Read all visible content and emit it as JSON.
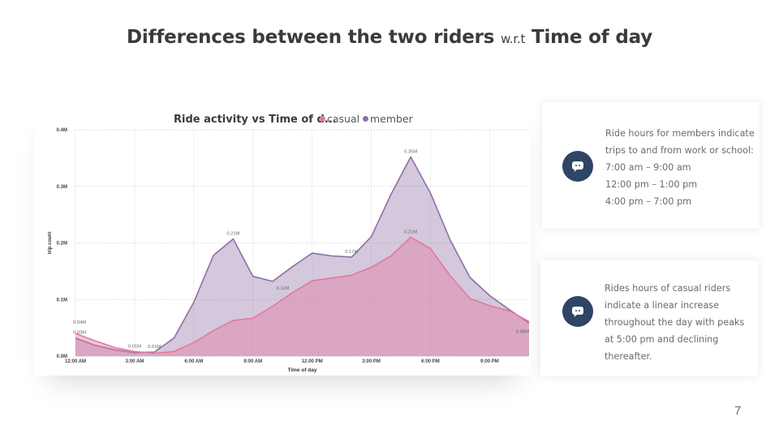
{
  "slide": {
    "title": "Differences between the two riders",
    "title_small": "w.r.t",
    "title_tail": "Time of day",
    "page_number": "7"
  },
  "chart_data": {
    "type": "area",
    "title": "Ride activity vs Time of d...",
    "xlabel": "Time of day",
    "ylabel": "trip count",
    "x_ticks": [
      "12:00 AM",
      "3:00 AM",
      "6:00 AM",
      "9:00 AM",
      "12:00 PM",
      "3:00 PM",
      "6:00 PM",
      "9:00 PM"
    ],
    "y_ticks": [
      "0.0M",
      "0.1M",
      "0.2M",
      "0.3M",
      "0.4M"
    ],
    "ylim": [
      0,
      0.4
    ],
    "x": [
      0,
      1,
      2,
      3,
      4,
      5,
      6,
      7,
      8,
      9,
      10,
      11,
      12,
      13,
      14,
      15,
      16,
      17,
      18,
      19,
      20,
      21,
      22,
      23
    ],
    "series": [
      {
        "name": "member",
        "color": "#8e6fa3",
        "values": [
          0.032,
          0.019,
          0.011,
          0.006,
          0.007,
          0.032,
          0.095,
          0.178,
          0.207,
          0.141,
          0.132,
          0.158,
          0.182,
          0.177,
          0.175,
          0.211,
          0.286,
          0.352,
          0.288,
          0.205,
          0.139,
          0.107,
          0.082,
          0.058
        ],
        "data_labels": [
          {
            "i": 0,
            "text": "0.03M"
          },
          {
            "i": 4,
            "text": "0.01M"
          },
          {
            "i": 8,
            "text": "0.21M"
          },
          {
            "i": 14,
            "text": "0.17M"
          },
          {
            "i": 17,
            "text": "0.35M"
          }
        ]
      },
      {
        "name": "casual",
        "color": "#e3789e",
        "values": [
          0.04,
          0.027,
          0.015,
          0.008,
          0.005,
          0.008,
          0.024,
          0.045,
          0.063,
          0.067,
          0.088,
          0.112,
          0.133,
          0.138,
          0.143,
          0.157,
          0.177,
          0.21,
          0.19,
          0.142,
          0.102,
          0.089,
          0.08,
          0.061
        ],
        "data_labels": [
          {
            "i": 0,
            "text": "0.04M"
          },
          {
            "i": 3,
            "text": "0.01M"
          },
          {
            "i": 11,
            "text": "0.11M"
          },
          {
            "i": 17,
            "text": "0.21M"
          },
          {
            "i": 23,
            "text": "0.06M"
          }
        ]
      }
    ],
    "legend_order": [
      "casual",
      "member"
    ],
    "legend_position": "top",
    "grid": true
  },
  "notes": [
    {
      "lines": [
        "Ride hours for members  indicate",
        "trips to and from work or school:",
        "7:00 am – 9:00 am",
        "12:00 pm – 1:00 pm",
        "4:00 pm – 7:00 pm"
      ],
      "icon": "chat-bubble-icon"
    },
    {
      "lines": [
        "Rides hours of casual riders",
        "indicate a linear increase",
        "throughout the day with peaks",
        "at 5:00 pm and declining",
        "thereafter."
      ],
      "icon": "chat-bubble-icon"
    }
  ]
}
